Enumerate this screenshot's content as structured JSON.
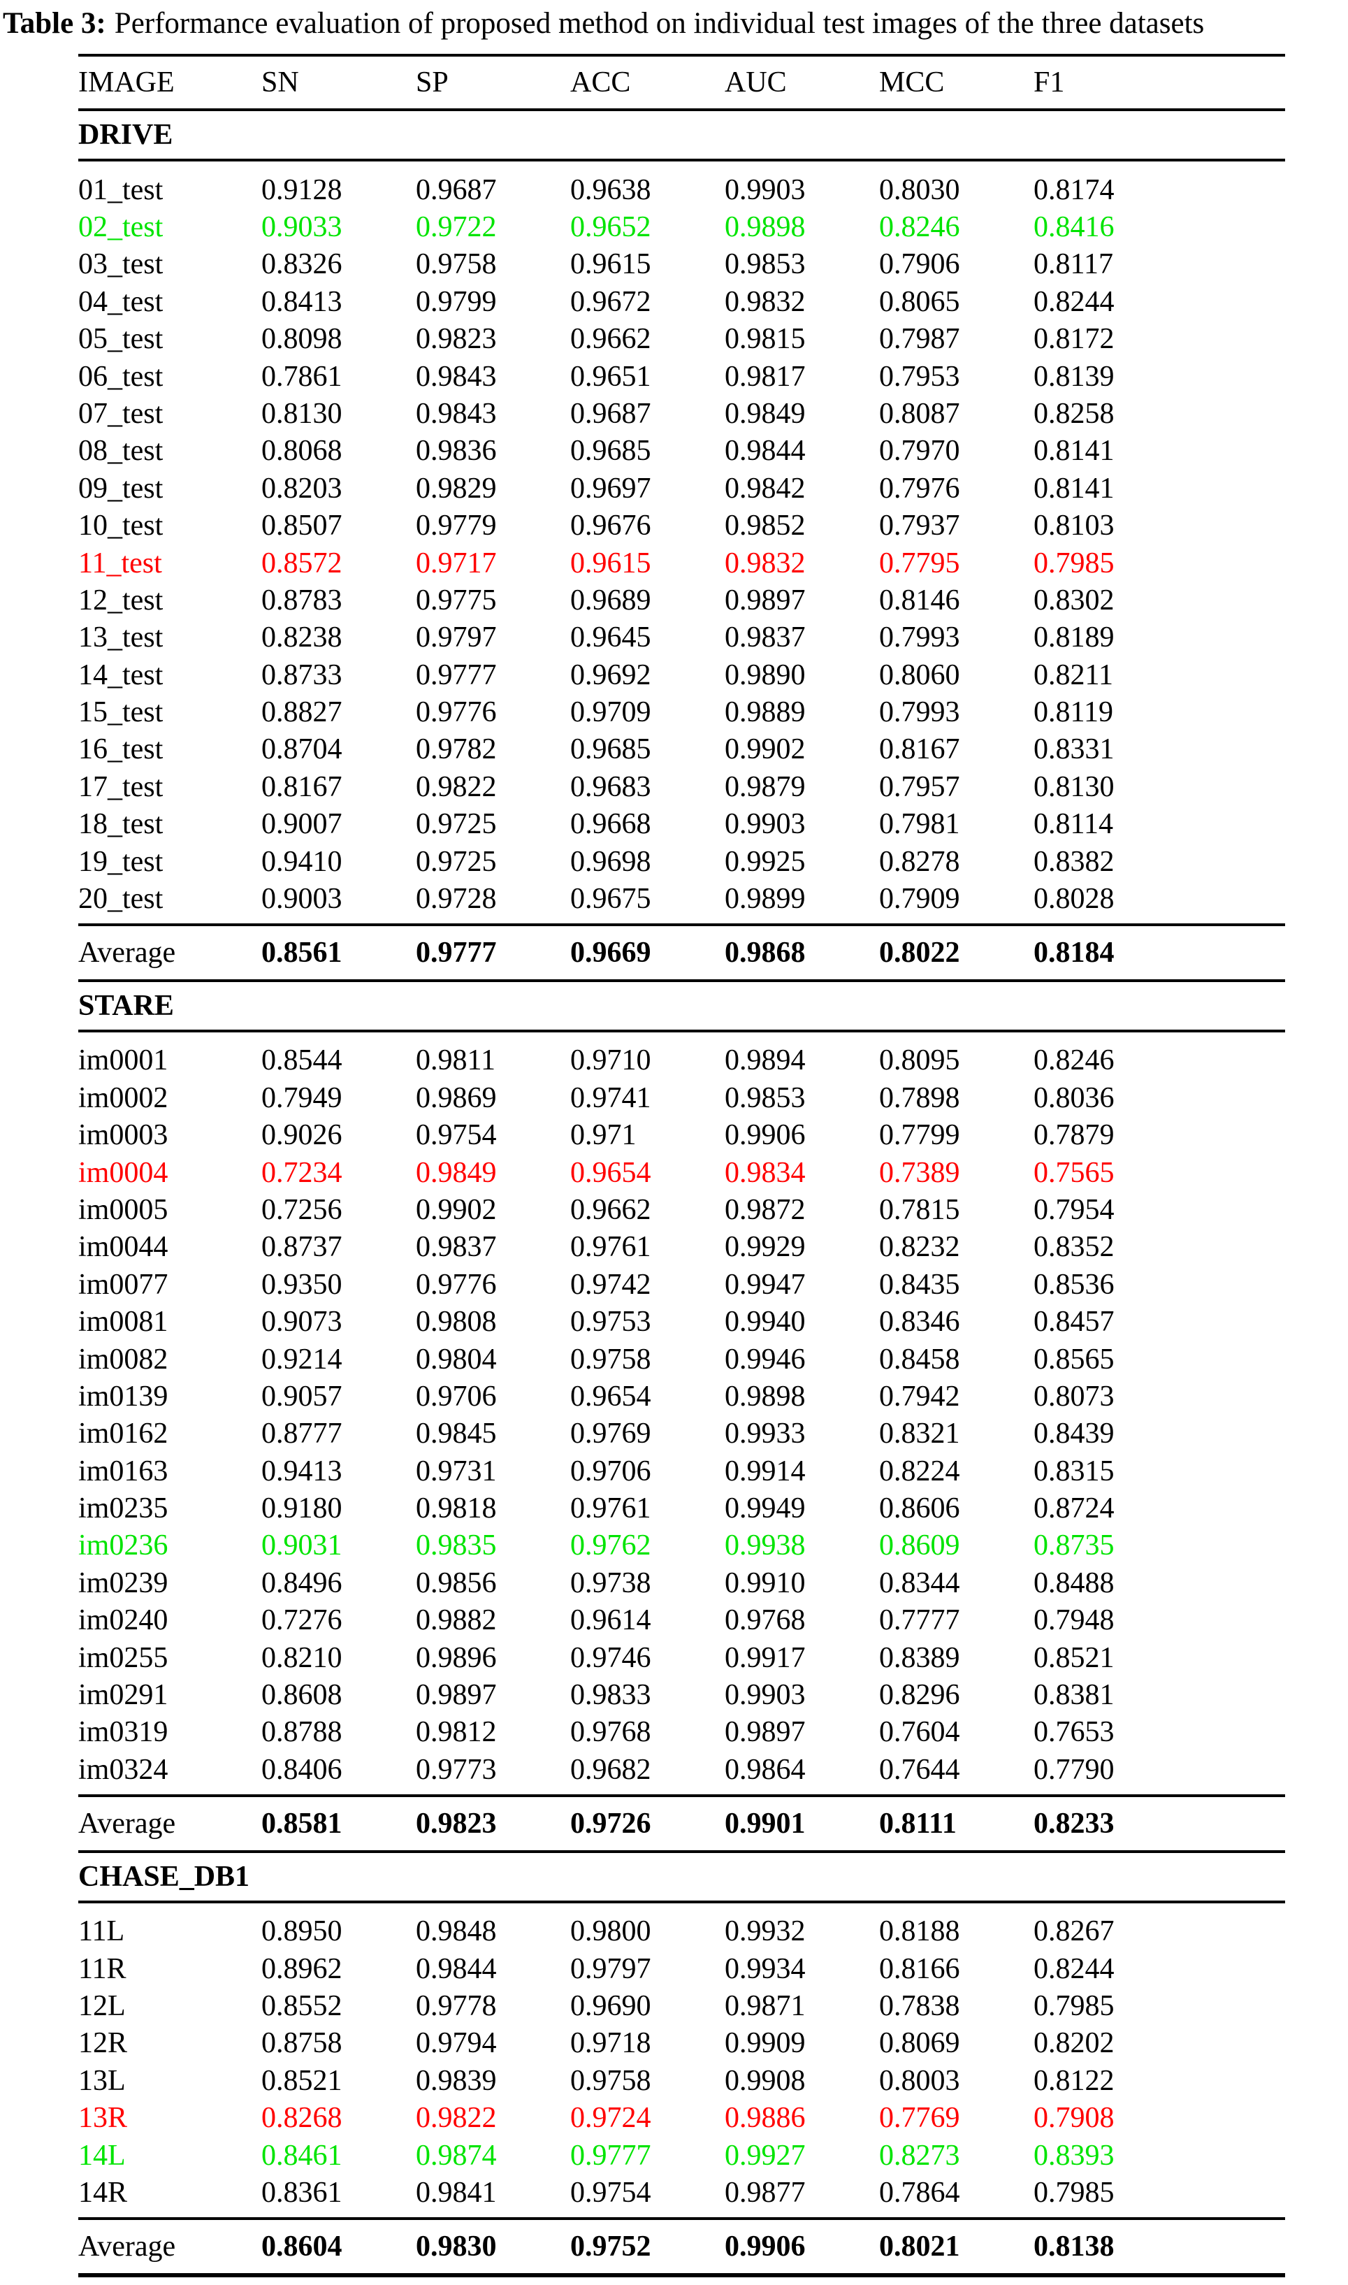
{
  "caption": {
    "label": "Table 3:",
    "text": "Performance evaluation of proposed method on individual test images of the three datasets"
  },
  "columns": [
    "IMAGE",
    "SN",
    "SP",
    "ACC",
    "AUC",
    "MCC",
    "F1"
  ],
  "colors": {
    "best_row": "#00e400",
    "worst_row": "#ff0000",
    "text": "#000000",
    "background": "#ffffff"
  },
  "sections": [
    {
      "name": "DRIVE",
      "rows": [
        {
          "image": "01_test",
          "values": [
            "0.9128",
            "0.9687",
            "0.9638",
            "0.9903",
            "0.8030",
            "0.8174"
          ]
        },
        {
          "image": "02_test",
          "color": "green",
          "values": [
            "0.9033",
            "0.9722",
            "0.9652",
            "0.9898",
            "0.8246",
            "0.8416"
          ]
        },
        {
          "image": "03_test",
          "values": [
            "0.8326",
            "0.9758",
            "0.9615",
            "0.9853",
            "0.7906",
            "0.8117"
          ]
        },
        {
          "image": "04_test",
          "values": [
            "0.8413",
            "0.9799",
            "0.9672",
            "0.9832",
            "0.8065",
            "0.8244"
          ]
        },
        {
          "image": "05_test",
          "values": [
            "0.8098",
            "0.9823",
            "0.9662",
            "0.9815",
            "0.7987",
            "0.8172"
          ]
        },
        {
          "image": "06_test",
          "values": [
            "0.7861",
            "0.9843",
            "0.9651",
            "0.9817",
            "0.7953",
            "0.8139"
          ]
        },
        {
          "image": "07_test",
          "values": [
            "0.8130",
            "0.9843",
            "0.9687",
            "0.9849",
            "0.8087",
            "0.8258"
          ]
        },
        {
          "image": "08_test",
          "values": [
            "0.8068",
            "0.9836",
            "0.9685",
            "0.9844",
            "0.7970",
            "0.8141"
          ]
        },
        {
          "image": "09_test",
          "values": [
            "0.8203",
            "0.9829",
            "0.9697",
            "0.9842",
            "0.7976",
            "0.8141"
          ]
        },
        {
          "image": "10_test",
          "values": [
            "0.8507",
            "0.9779",
            "0.9676",
            "0.9852",
            "0.7937",
            "0.8103"
          ]
        },
        {
          "image": "11_test",
          "color": "red",
          "values": [
            "0.8572",
            "0.9717",
            "0.9615",
            "0.9832",
            "0.7795",
            "0.7985"
          ]
        },
        {
          "image": "12_test",
          "values": [
            "0.8783",
            "0.9775",
            "0.9689",
            "0.9897",
            "0.8146",
            "0.8302"
          ]
        },
        {
          "image": "13_test",
          "values": [
            "0.8238",
            "0.9797",
            "0.9645",
            "0.9837",
            "0.7993",
            "0.8189"
          ]
        },
        {
          "image": "14_test",
          "values": [
            "0.8733",
            "0.9777",
            "0.9692",
            "0.9890",
            "0.8060",
            "0.8211"
          ]
        },
        {
          "image": "15_test",
          "values": [
            "0.8827",
            "0.9776",
            "0.9709",
            "0.9889",
            "0.7993",
            "0.8119"
          ]
        },
        {
          "image": "16_test",
          "values": [
            "0.8704",
            "0.9782",
            "0.9685",
            "0.9902",
            "0.8167",
            "0.8331"
          ]
        },
        {
          "image": "17_test",
          "values": [
            "0.8167",
            "0.9822",
            "0.9683",
            "0.9879",
            "0.7957",
            "0.8130"
          ]
        },
        {
          "image": "18_test",
          "values": [
            "0.9007",
            "0.9725",
            "0.9668",
            "0.9903",
            "0.7981",
            "0.8114"
          ]
        },
        {
          "image": "19_test",
          "values": [
            "0.9410",
            "0.9725",
            "0.9698",
            "0.9925",
            "0.8278",
            "0.8382"
          ]
        },
        {
          "image": "20_test",
          "values": [
            "0.9003",
            "0.9728",
            "0.9675",
            "0.9899",
            "0.7909",
            "0.8028"
          ]
        }
      ],
      "average": {
        "label": "Average",
        "values": [
          "0.8561",
          "0.9777",
          "0.9669",
          "0.9868",
          "0.8022",
          "0.8184"
        ]
      }
    },
    {
      "name": "STARE",
      "rows": [
        {
          "image": "im0001",
          "values": [
            "0.8544",
            "0.9811",
            "0.9710",
            "0.9894",
            "0.8095",
            "0.8246"
          ]
        },
        {
          "image": "im0002",
          "values": [
            "0.7949",
            "0.9869",
            "0.9741",
            "0.9853",
            "0.7898",
            "0.8036"
          ]
        },
        {
          "image": "im0003",
          "values": [
            "0.9026",
            "0.9754",
            "0.971",
            "0.9906",
            "0.7799",
            "0.7879"
          ]
        },
        {
          "image": "im0004",
          "color": "red",
          "values": [
            "0.7234",
            "0.9849",
            "0.9654",
            "0.9834",
            "0.7389",
            "0.7565"
          ]
        },
        {
          "image": "im0005",
          "values": [
            "0.7256",
            "0.9902",
            "0.9662",
            "0.9872",
            "0.7815",
            "0.7954"
          ]
        },
        {
          "image": "im0044",
          "values": [
            "0.8737",
            "0.9837",
            "0.9761",
            "0.9929",
            "0.8232",
            "0.8352"
          ]
        },
        {
          "image": "im0077",
          "values": [
            "0.9350",
            "0.9776",
            "0.9742",
            "0.9947",
            "0.8435",
            "0.8536"
          ]
        },
        {
          "image": "im0081",
          "values": [
            "0.9073",
            "0.9808",
            "0.9753",
            "0.9940",
            "0.8346",
            "0.8457"
          ]
        },
        {
          "image": "im0082",
          "values": [
            "0.9214",
            "0.9804",
            "0.9758",
            "0.9946",
            "0.8458",
            "0.8565"
          ]
        },
        {
          "image": "im0139",
          "values": [
            "0.9057",
            "0.9706",
            "0.9654",
            "0.9898",
            "0.7942",
            "0.8073"
          ]
        },
        {
          "image": "im0162",
          "values": [
            "0.8777",
            "0.9845",
            "0.9769",
            "0.9933",
            "0.8321",
            "0.8439"
          ]
        },
        {
          "image": "im0163",
          "values": [
            "0.9413",
            "0.9731",
            "0.9706",
            "0.9914",
            "0.8224",
            "0.8315"
          ]
        },
        {
          "image": "im0235",
          "values": [
            "0.9180",
            "0.9818",
            "0.9761",
            "0.9949",
            "0.8606",
            "0.8724"
          ]
        },
        {
          "image": "im0236",
          "color": "green",
          "values": [
            "0.9031",
            "0.9835",
            "0.9762",
            "0.9938",
            "0.8609",
            "0.8735"
          ]
        },
        {
          "image": "im0239",
          "values": [
            "0.8496",
            "0.9856",
            "0.9738",
            "0.9910",
            "0.8344",
            "0.8488"
          ]
        },
        {
          "image": "im0240",
          "values": [
            "0.7276",
            "0.9882",
            "0.9614",
            "0.9768",
            "0.7777",
            "0.7948"
          ]
        },
        {
          "image": "im0255",
          "values": [
            "0.8210",
            "0.9896",
            "0.9746",
            "0.9917",
            "0.8389",
            "0.8521"
          ]
        },
        {
          "image": "im0291",
          "values": [
            "0.8608",
            "0.9897",
            "0.9833",
            "0.9903",
            "0.8296",
            "0.8381"
          ]
        },
        {
          "image": "im0319",
          "values": [
            "0.8788",
            "0.9812",
            "0.9768",
            "0.9897",
            "0.7604",
            "0.7653"
          ]
        },
        {
          "image": "im0324",
          "values": [
            "0.8406",
            "0.9773",
            "0.9682",
            "0.9864",
            "0.7644",
            "0.7790"
          ]
        }
      ],
      "average": {
        "label": "Average",
        "values": [
          "0.8581",
          "0.9823",
          "0.9726",
          "0.9901",
          "0.8111",
          "0.8233"
        ]
      }
    },
    {
      "name": "CHASE_DB1",
      "rows": [
        {
          "image": "11L",
          "values": [
            "0.8950",
            "0.9848",
            "0.9800",
            "0.9932",
            "0.8188",
            "0.8267"
          ]
        },
        {
          "image": "11R",
          "values": [
            "0.8962",
            "0.9844",
            "0.9797",
            "0.9934",
            "0.8166",
            "0.8244"
          ]
        },
        {
          "image": "12L",
          "values": [
            "0.8552",
            "0.9778",
            "0.9690",
            "0.9871",
            "0.7838",
            "0.7985"
          ]
        },
        {
          "image": "12R",
          "values": [
            "0.8758",
            "0.9794",
            "0.9718",
            "0.9909",
            "0.8069",
            "0.8202"
          ]
        },
        {
          "image": "13L",
          "values": [
            "0.8521",
            "0.9839",
            "0.9758",
            "0.9908",
            "0.8003",
            "0.8122"
          ]
        },
        {
          "image": "13R",
          "color": "red",
          "values": [
            "0.8268",
            "0.9822",
            "0.9724",
            "0.9886",
            "0.7769",
            "0.7908"
          ]
        },
        {
          "image": "14L",
          "color": "green",
          "values": [
            "0.8461",
            "0.9874",
            "0.9777",
            "0.9927",
            "0.8273",
            "0.8393"
          ]
        },
        {
          "image": "14R",
          "values": [
            "0.8361",
            "0.9841",
            "0.9754",
            "0.9877",
            "0.7864",
            "0.7985"
          ]
        }
      ],
      "average": {
        "label": "Average",
        "values": [
          "0.8604",
          "0.9830",
          "0.9752",
          "0.9906",
          "0.8021",
          "0.8138"
        ]
      }
    }
  ]
}
